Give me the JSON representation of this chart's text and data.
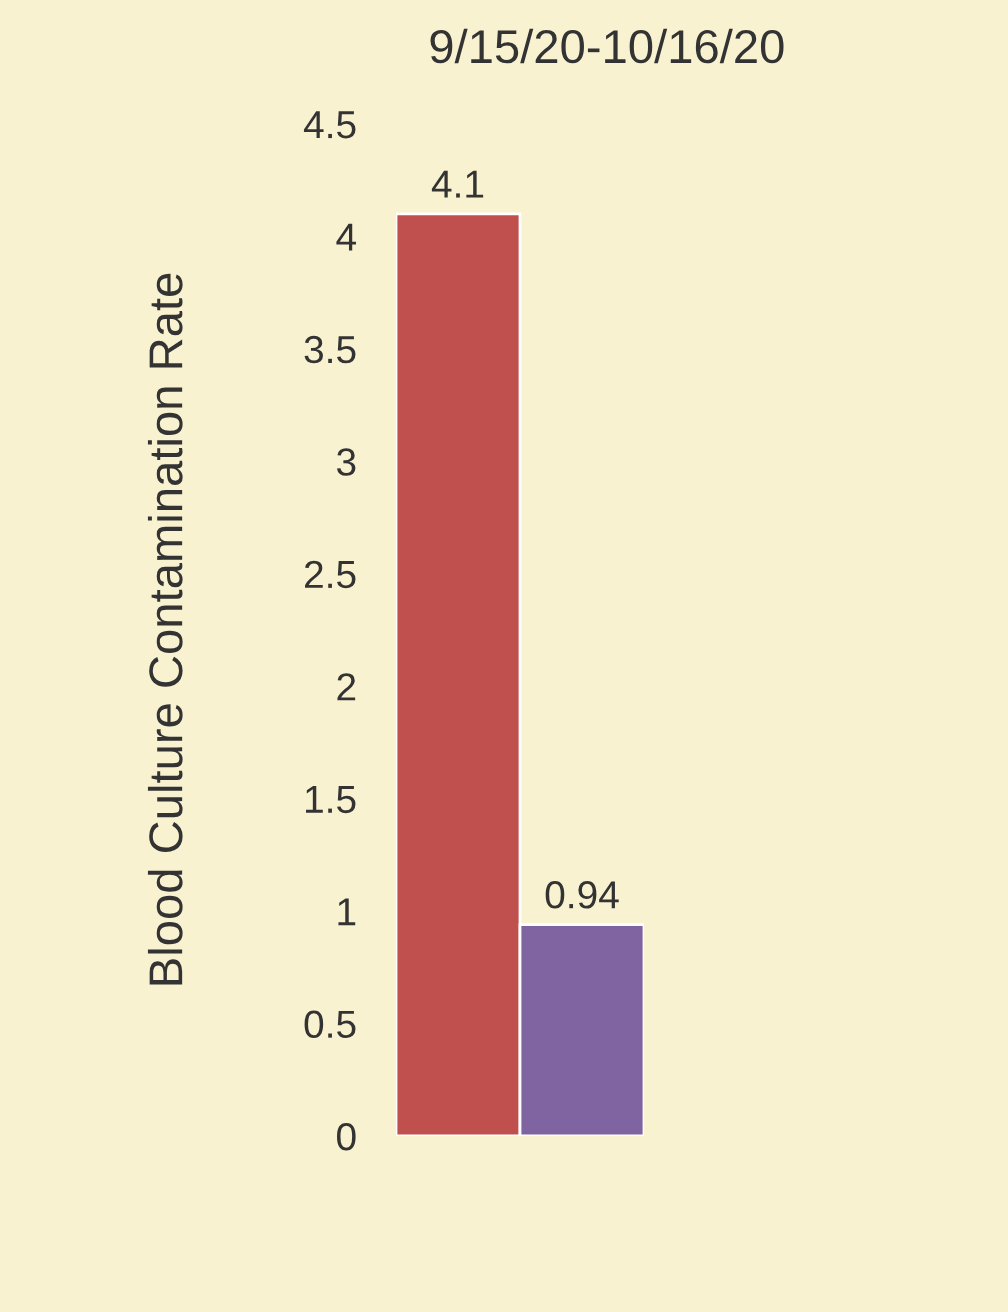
{
  "chart_data": {
    "type": "bar",
    "title": "9/15/20-10/16/20",
    "ylabel": "Blood Culture Contamination Rate",
    "categories": [
      null,
      null
    ],
    "values": [
      4.1,
      0.94
    ],
    "colors": [
      "#c0504d",
      "#8064a2"
    ],
    "ylim": [
      0,
      4.5
    ],
    "yticks": [
      0,
      0.5,
      1,
      1.5,
      2,
      2.5,
      3,
      3.5,
      4,
      4.5
    ],
    "data_labels": true,
    "grid": false,
    "legend": false
  }
}
